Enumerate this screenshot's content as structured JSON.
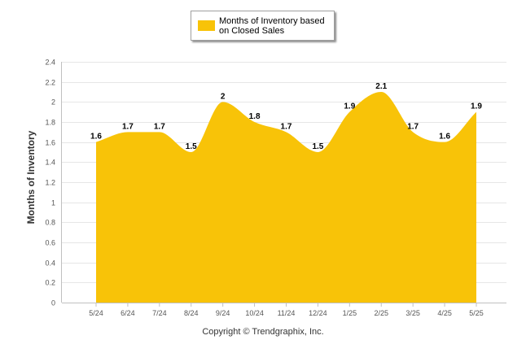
{
  "chart_data": {
    "type": "area",
    "categories": [
      "5/24",
      "6/24",
      "7/24",
      "8/24",
      "9/24",
      "10/24",
      "11/24",
      "12/24",
      "1/25",
      "2/25",
      "3/25",
      "4/25",
      "5/25"
    ],
    "series": [
      {
        "name": "Months of Inventory based on Closed Sales",
        "values": [
          1.6,
          1.7,
          1.7,
          1.5,
          2,
          1.8,
          1.7,
          1.5,
          1.9,
          2.1,
          1.7,
          1.6,
          1.9
        ]
      }
    ],
    "value_labels": [
      "1.6",
      "1.7",
      "1.7",
      "1.5",
      "2",
      "1.8",
      "1.7",
      "1.5",
      "1.9",
      "2.1",
      "1.7",
      "1.6",
      "1.9"
    ],
    "y_ticks": [
      "0",
      "0.2",
      "0.4",
      "0.6",
      "0.8",
      "1",
      "1.2",
      "1.4",
      "1.6",
      "1.8",
      "2",
      "2.2",
      "2.4"
    ],
    "ylim": [
      0,
      2.4
    ],
    "xlabel": "",
    "ylabel": "Months of Inventory",
    "grid": true,
    "legend_position": "top-center",
    "fill_color": "#f8c308",
    "grid_color": "#e6e6e6"
  },
  "footer": {
    "copyright": "Copyright © Trendgraphix, Inc."
  }
}
